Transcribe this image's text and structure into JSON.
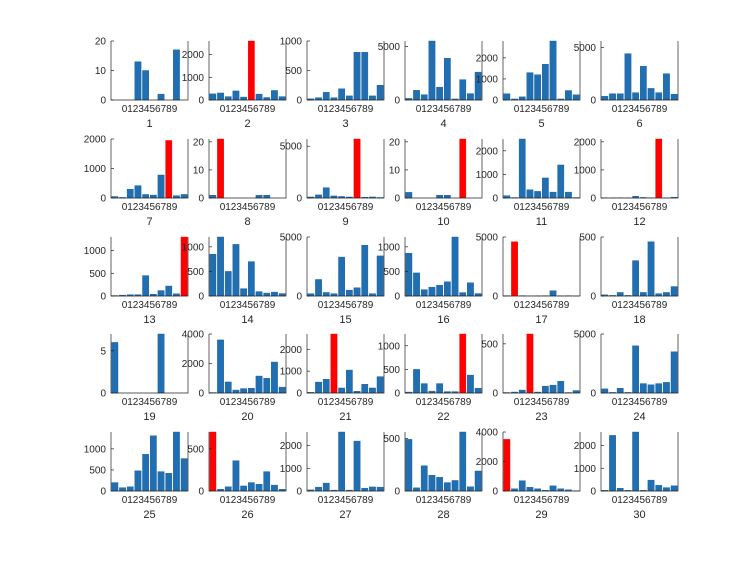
{
  "colors": {
    "bar": "#1f6fb2",
    "highlight": "#ff0000",
    "axis": "#222222",
    "text": "#262626"
  },
  "chart_data": [
    {
      "type": "bar",
      "xlabel": "1",
      "categories_label": "0123456789",
      "ylim": [
        0,
        20
      ],
      "yticks": [
        0,
        10,
        20
      ],
      "ytick_labels": [
        "0",
        "10",
        "20"
      ],
      "highlight_index": null,
      "values": [
        0,
        0,
        0,
        13,
        10,
        0,
        2,
        0,
        17,
        0
      ]
    },
    {
      "type": "bar",
      "xlabel": "2",
      "categories_label": "0123456789",
      "ylim": [
        0,
        2600
      ],
      "yticks": [
        0,
        1000,
        2000
      ],
      "ytick_labels": [
        "0",
        "1000",
        "2000"
      ],
      "highlight_index": 5,
      "values": [
        270,
        310,
        150,
        400,
        130,
        2600,
        260,
        110,
        420,
        150
      ]
    },
    {
      "type": "bar",
      "xlabel": "3",
      "categories_label": "0123456789",
      "ylim": [
        0,
        1000
      ],
      "yticks": [
        0,
        500,
        1000
      ],
      "ytick_labels": [
        "0",
        "500",
        "1000"
      ],
      "highlight_index": null,
      "values": [
        20,
        40,
        130,
        40,
        190,
        70,
        810,
        810,
        70,
        250
      ]
    },
    {
      "type": "bar",
      "xlabel": "4",
      "categories_label": "0123456789",
      "ylim": [
        0,
        5500
      ],
      "yticks": [
        0,
        5000
      ],
      "ytick_labels": [
        "0",
        "5000"
      ],
      "highlight_index": null,
      "values": [
        150,
        900,
        500,
        5500,
        1200,
        3900,
        100,
        1900,
        600,
        2600
      ]
    },
    {
      "type": "bar",
      "xlabel": "5",
      "categories_label": "0123456789",
      "ylim": [
        0,
        2800
      ],
      "yticks": [
        0,
        1000,
        2000
      ],
      "ytick_labels": [
        "0",
        "1000",
        "2000"
      ],
      "highlight_index": null,
      "values": [
        300,
        50,
        150,
        1300,
        1200,
        1700,
        2800,
        50,
        450,
        250
      ]
    },
    {
      "type": "bar",
      "xlabel": "6",
      "categories_label": "0123456789",
      "ylim": [
        0,
        5600
      ],
      "yticks": [
        0,
        5000
      ],
      "ytick_labels": [
        "0",
        "5000"
      ],
      "highlight_index": null,
      "values": [
        350,
        600,
        600,
        4400,
        700,
        3200,
        1100,
        700,
        2500,
        550
      ]
    },
    {
      "type": "bar",
      "xlabel": "7",
      "categories_label": "0123456789",
      "ylim": [
        0,
        2000
      ],
      "yticks": [
        0,
        1000,
        2000
      ],
      "ytick_labels": [
        "0",
        "1000",
        "2000"
      ],
      "highlight_index": 7,
      "values": [
        50,
        20,
        300,
        420,
        120,
        100,
        780,
        1950,
        80,
        120
      ]
    },
    {
      "type": "bar",
      "xlabel": "8",
      "categories_label": "0123456789",
      "ylim": [
        0,
        21
      ],
      "yticks": [
        0,
        10,
        20
      ],
      "ytick_labels": [
        "0",
        "10",
        "20"
      ],
      "highlight_index": 1,
      "values": [
        1,
        21,
        0,
        0,
        0,
        0,
        1,
        1,
        0,
        0
      ]
    },
    {
      "type": "bar",
      "xlabel": "9",
      "categories_label": "0123456789",
      "ylim": [
        0,
        5700
      ],
      "yticks": [
        0,
        5000
      ],
      "ytick_labels": [
        "0",
        "5000"
      ],
      "highlight_index": 6,
      "values": [
        100,
        300,
        1000,
        200,
        150,
        100,
        5700,
        80,
        100,
        50
      ]
    },
    {
      "type": "bar",
      "xlabel": "10",
      "categories_label": "0123456789",
      "ylim": [
        0,
        21
      ],
      "yticks": [
        0,
        10,
        20
      ],
      "ytick_labels": [
        "0",
        "10",
        "20"
      ],
      "highlight_index": 7,
      "values": [
        2,
        0,
        0,
        0,
        1,
        1,
        0,
        21,
        0,
        0
      ]
    },
    {
      "type": "bar",
      "xlabel": "11",
      "categories_label": "0123456789",
      "ylim": [
        0,
        2500
      ],
      "yticks": [
        0,
        1000,
        2000
      ],
      "ytick_labels": [
        "0",
        "1000",
        "2000"
      ],
      "highlight_index": null,
      "values": [
        100,
        20,
        2500,
        350,
        280,
        850,
        250,
        1400,
        250,
        20
      ]
    },
    {
      "type": "bar",
      "xlabel": "12",
      "categories_label": "0123456789",
      "ylim": [
        0,
        2100
      ],
      "yticks": [
        0,
        1000,
        2000
      ],
      "ytick_labels": [
        "0",
        "1000",
        "2000"
      ],
      "highlight_index": 7,
      "values": [
        10,
        5,
        10,
        5,
        60,
        20,
        10,
        2100,
        5,
        30
      ]
    },
    {
      "type": "bar",
      "xlabel": "13",
      "categories_label": "0123456789",
      "ylim": [
        0,
        1300
      ],
      "yticks": [
        0,
        500,
        1000
      ],
      "ytick_labels": [
        "0",
        "500",
        "1000"
      ],
      "highlight_index": 9,
      "values": [
        10,
        20,
        30,
        30,
        450,
        40,
        120,
        220,
        50,
        1300
      ]
    },
    {
      "type": "bar",
      "xlabel": "14",
      "categories_label": "0123456789",
      "ylim": [
        0,
        1200
      ],
      "yticks": [
        0,
        500,
        1000
      ],
      "ytick_labels": [
        "0",
        "500",
        "1000"
      ],
      "highlight_index": null,
      "values": [
        850,
        1200,
        500,
        1050,
        150,
        700,
        90,
        60,
        80,
        50
      ]
    },
    {
      "type": "bar",
      "xlabel": "15",
      "categories_label": "0123456789",
      "ylim": [
        0,
        5000
      ],
      "yticks": [
        0,
        5000
      ],
      "ytick_labels": [
        "0",
        "5000"
      ],
      "highlight_index": null,
      "values": [
        200,
        1400,
        300,
        200,
        3300,
        500,
        700,
        4300,
        200,
        3400
      ]
    },
    {
      "type": "bar",
      "xlabel": "16",
      "categories_label": "0123456789",
      "ylim": [
        0,
        1200
      ],
      "yticks": [
        0,
        500,
        1000
      ],
      "ytick_labels": [
        "0",
        "500",
        "1000"
      ],
      "highlight_index": null,
      "values": [
        870,
        470,
        130,
        180,
        220,
        290,
        1200,
        70,
        270,
        50
      ]
    },
    {
      "type": "bar",
      "xlabel": "17",
      "categories_label": "0123456789",
      "ylim": [
        0,
        5000
      ],
      "yticks": [
        0,
        5000
      ],
      "ytick_labels": [
        "0",
        "5000"
      ],
      "highlight_index": 1,
      "values": [
        30,
        4600,
        30,
        10,
        20,
        30,
        450,
        20,
        30,
        10
      ]
    },
    {
      "type": "bar",
      "xlabel": "18",
      "categories_label": "0123456789",
      "ylim": [
        0,
        500
      ],
      "yticks": [
        0,
        500
      ],
      "ytick_labels": [
        "0",
        "500"
      ],
      "highlight_index": null,
      "values": [
        10,
        5,
        30,
        5,
        300,
        30,
        460,
        20,
        30,
        80
      ]
    },
    {
      "type": "bar",
      "xlabel": "19",
      "categories_label": "0123456789",
      "ylim": [
        0,
        7
      ],
      "yticks": [
        0,
        5
      ],
      "ytick_labels": [
        "0",
        "5"
      ],
      "highlight_index": null,
      "values": [
        6,
        0,
        0,
        0,
        0,
        0,
        7,
        0,
        0,
        0
      ]
    },
    {
      "type": "bar",
      "xlabel": "20",
      "categories_label": "0123456789",
      "ylim": [
        0,
        4000
      ],
      "yticks": [
        0,
        2000,
        4000
      ],
      "ytick_labels": [
        "0",
        "2000",
        "4000"
      ],
      "highlight_index": null,
      "values": [
        30,
        3600,
        750,
        200,
        300,
        320,
        1150,
        1000,
        2100,
        400
      ]
    },
    {
      "type": "bar",
      "xlabel": "21",
      "categories_label": "0123456789",
      "ylim": [
        0,
        2700
      ],
      "yticks": [
        0,
        1000,
        2000
      ],
      "ytick_labels": [
        "0",
        "1000",
        "2000"
      ],
      "highlight_index": 3,
      "values": [
        30,
        500,
        630,
        2700,
        230,
        1050,
        80,
        400,
        230,
        750
      ]
    },
    {
      "type": "bar",
      "xlabel": "22",
      "categories_label": "0123456789",
      "ylim": [
        0,
        1250
      ],
      "yticks": [
        0,
        500,
        1000
      ],
      "ytick_labels": [
        "0",
        "500",
        "1000"
      ],
      "highlight_index": 7,
      "values": [
        20,
        500,
        200,
        40,
        200,
        30,
        30,
        1250,
        380,
        100
      ]
    },
    {
      "type": "bar",
      "xlabel": "23",
      "categories_label": "0123456789",
      "ylim": [
        0,
        600
      ],
      "yticks": [
        0,
        500
      ],
      "ytick_labels": [
        "0",
        "500"
      ],
      "highlight_index": 3,
      "values": [
        5,
        10,
        30,
        600,
        10,
        70,
        80,
        120,
        5,
        25
      ]
    },
    {
      "type": "bar",
      "xlabel": "24",
      "categories_label": "0123456789",
      "ylim": [
        0,
        5000
      ],
      "yticks": [
        0,
        5000
      ],
      "ytick_labels": [
        "0",
        "5000"
      ],
      "highlight_index": null,
      "values": [
        350,
        50,
        400,
        50,
        4000,
        800,
        700,
        800,
        900,
        3500
      ]
    },
    {
      "type": "bar",
      "xlabel": "25",
      "categories_label": "0123456789",
      "ylim": [
        0,
        1400
      ],
      "yticks": [
        0,
        500,
        1000
      ],
      "ytick_labels": [
        "0",
        "500",
        "1000"
      ],
      "highlight_index": null,
      "values": [
        200,
        80,
        100,
        480,
        870,
        1310,
        460,
        420,
        1400,
        770
      ]
    },
    {
      "type": "bar",
      "xlabel": "26",
      "categories_label": "0123456789",
      "ylim": [
        0,
        700
      ],
      "yticks": [
        0,
        500
      ],
      "ytick_labels": [
        "0",
        "500"
      ],
      "highlight_index": 0,
      "values": [
        700,
        20,
        50,
        360,
        60,
        100,
        80,
        230,
        70,
        20
      ]
    },
    {
      "type": "bar",
      "xlabel": "27",
      "categories_label": "0123456789",
      "ylim": [
        0,
        2600
      ],
      "yticks": [
        0,
        1000,
        2000
      ],
      "ytick_labels": [
        "0",
        "1000",
        "2000"
      ],
      "highlight_index": null,
      "values": [
        50,
        170,
        350,
        40,
        2600,
        40,
        2200,
        120,
        180,
        170
      ]
    },
    {
      "type": "bar",
      "xlabel": "28",
      "categories_label": "0123456789",
      "ylim": [
        0,
        560
      ],
      "yticks": [
        0,
        500
      ],
      "ytick_labels": [
        "0",
        "500"
      ],
      "highlight_index": null,
      "values": [
        490,
        30,
        240,
        150,
        130,
        80,
        100,
        560,
        40,
        190
      ]
    },
    {
      "type": "bar",
      "xlabel": "29",
      "categories_label": "0123456789",
      "ylim": [
        0,
        4000
      ],
      "yticks": [
        0,
        2000,
        4000
      ],
      "ytick_labels": [
        "0",
        "2000",
        "4000"
      ],
      "highlight_index": 0,
      "values": [
        3500,
        150,
        700,
        250,
        150,
        50,
        350,
        150,
        80,
        20
      ]
    },
    {
      "type": "bar",
      "xlabel": "30",
      "categories_label": "0123456789",
      "ylim": [
        0,
        2600
      ],
      "yticks": [
        0,
        1000,
        2000
      ],
      "ytick_labels": [
        "0",
        "1000",
        "2000"
      ],
      "highlight_index": null,
      "values": [
        30,
        2450,
        120,
        30,
        2600,
        30,
        480,
        250,
        150,
        230
      ]
    }
  ]
}
